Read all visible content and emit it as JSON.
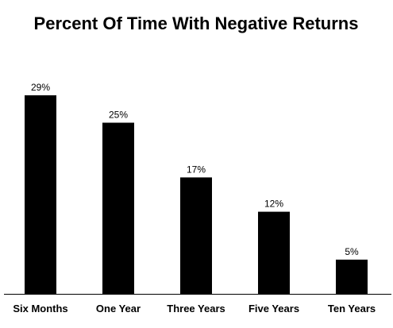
{
  "chart_data": {
    "type": "bar",
    "title": "Percent Of Time With Negative Returns",
    "categories": [
      "Six Months",
      "One Year",
      "Three Years",
      "Five Years",
      "Ten Years"
    ],
    "values": [
      29,
      25,
      17,
      12,
      5
    ],
    "value_labels": [
      "29%",
      "25%",
      "17%",
      "12%",
      "5%"
    ],
    "xlabel": "",
    "ylabel": "",
    "ylim": [
      0,
      29
    ],
    "grid": false,
    "legend": "none",
    "bar_color": "#000000",
    "axis_color": "#000000",
    "background": "#ffffff"
  }
}
